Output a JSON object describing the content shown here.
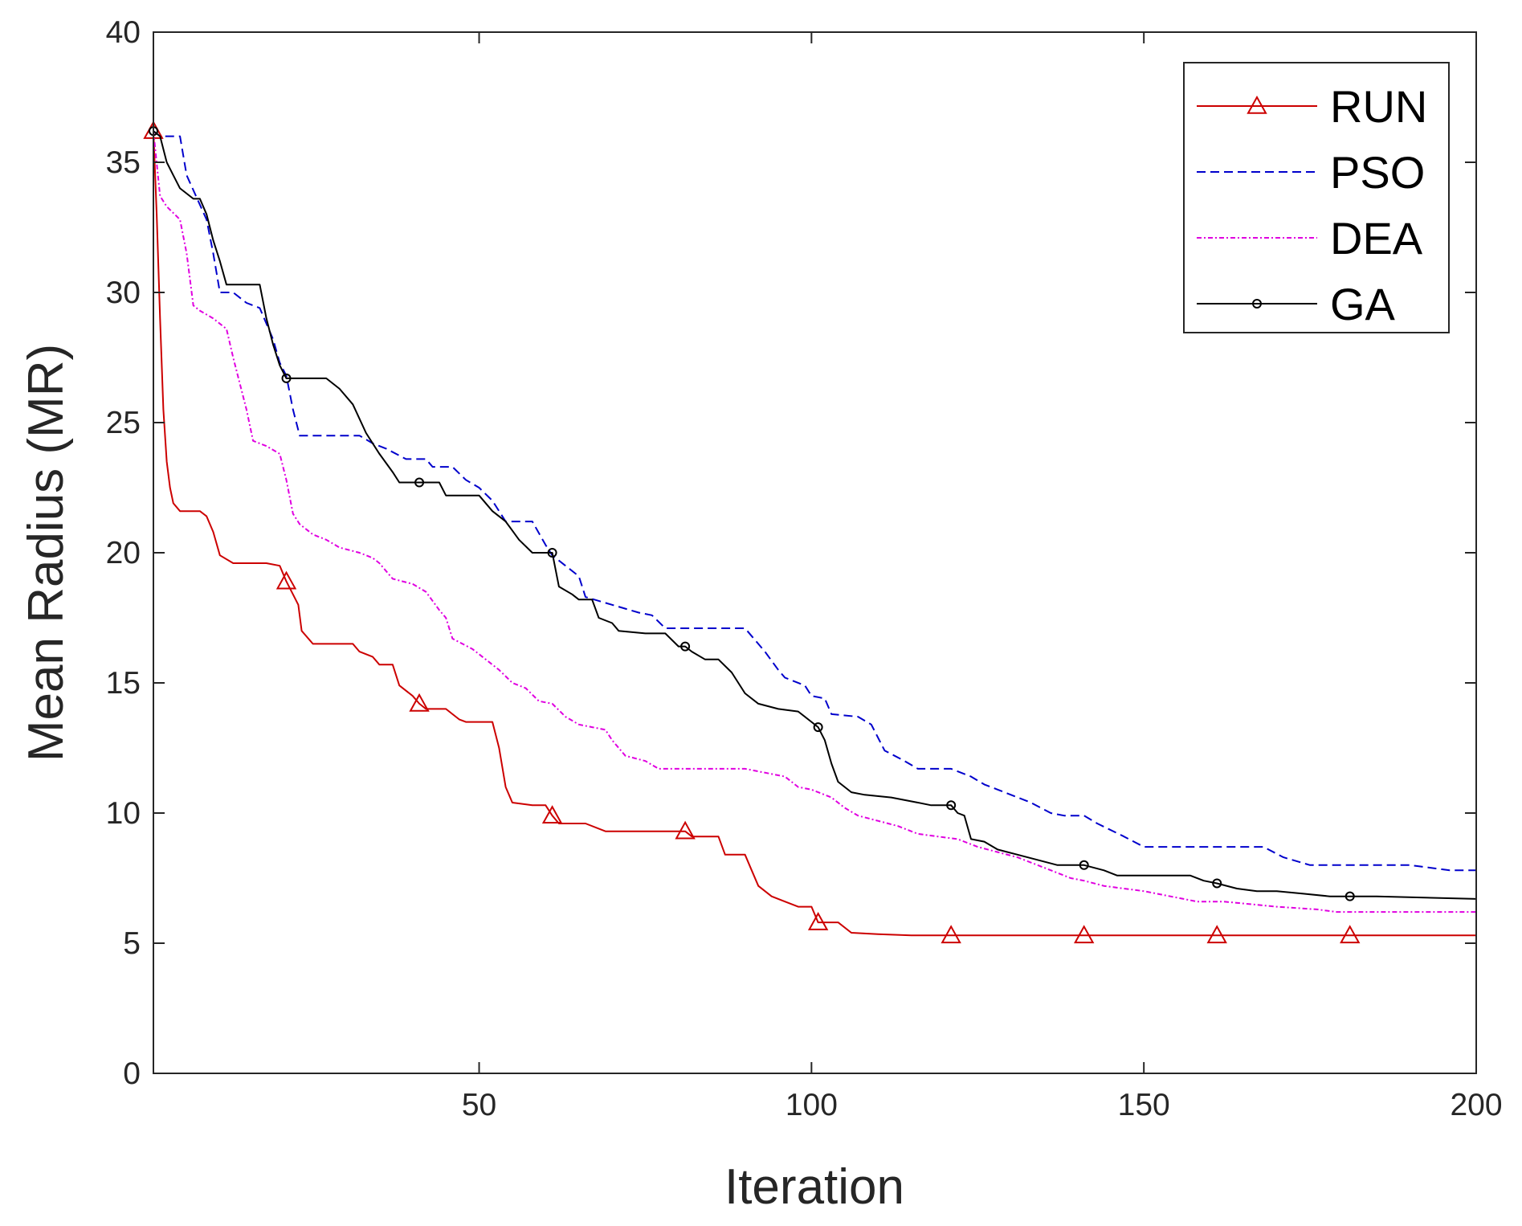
{
  "chart_data": {
    "type": "line",
    "title": "",
    "xlabel": "Iteration",
    "ylabel": "Mean Radius (MR)",
    "xlim": [
      1,
      200
    ],
    "ylim": [
      0,
      40
    ],
    "xticks": [
      50,
      100,
      150,
      200
    ],
    "yticks": [
      0,
      5,
      10,
      15,
      20,
      25,
      30,
      35,
      40
    ],
    "grid": false,
    "legend_position": "top-right",
    "series": [
      {
        "name": "RUN",
        "color": "#cc0000",
        "line_style": "solid",
        "marker": "triangle",
        "marker_x": [
          1,
          21,
          41,
          61,
          81,
          101,
          121,
          141,
          161,
          181
        ],
        "points": [
          [
            1,
            36.2
          ],
          [
            1.5,
            33
          ],
          [
            2,
            29
          ],
          [
            2.5,
            25.5
          ],
          [
            3,
            23.5
          ],
          [
            3.5,
            22.5
          ],
          [
            4,
            21.9
          ],
          [
            5,
            21.6
          ],
          [
            8,
            21.6
          ],
          [
            9,
            21.4
          ],
          [
            10,
            20.8
          ],
          [
            11,
            19.9
          ],
          [
            13,
            19.6
          ],
          [
            16,
            19.6
          ],
          [
            18,
            19.6
          ],
          [
            20,
            19.5
          ],
          [
            21,
            18.9
          ],
          [
            22,
            18.4
          ],
          [
            22.8,
            18.0
          ],
          [
            23.3,
            17.0
          ],
          [
            25,
            16.5
          ],
          [
            29,
            16.5
          ],
          [
            31,
            16.5
          ],
          [
            32,
            16.2
          ],
          [
            34,
            16.0
          ],
          [
            35,
            15.7
          ],
          [
            37,
            15.7
          ],
          [
            38,
            14.9
          ],
          [
            40,
            14.5
          ],
          [
            41,
            14.2
          ],
          [
            42,
            14.0
          ],
          [
            45,
            14.0
          ],
          [
            46,
            13.8
          ],
          [
            47,
            13.6
          ],
          [
            48,
            13.5
          ],
          [
            52,
            13.5
          ],
          [
            53,
            12.5
          ],
          [
            54,
            11.0
          ],
          [
            55,
            10.4
          ],
          [
            58,
            10.3
          ],
          [
            60,
            10.3
          ],
          [
            61,
            9.9
          ],
          [
            62,
            9.6
          ],
          [
            66,
            9.6
          ],
          [
            69,
            9.3
          ],
          [
            73,
            9.3
          ],
          [
            77,
            9.3
          ],
          [
            81,
            9.3
          ],
          [
            82,
            9.1
          ],
          [
            86,
            9.1
          ],
          [
            87,
            8.4
          ],
          [
            90,
            8.4
          ],
          [
            91,
            7.8
          ],
          [
            92,
            7.2
          ],
          [
            94,
            6.8
          ],
          [
            96,
            6.6
          ],
          [
            98,
            6.4
          ],
          [
            100,
            6.4
          ],
          [
            101,
            5.8
          ],
          [
            104,
            5.8
          ],
          [
            106,
            5.4
          ],
          [
            110,
            5.35
          ],
          [
            115,
            5.3
          ],
          [
            121,
            5.3
          ],
          [
            141,
            5.3
          ],
          [
            161,
            5.3
          ],
          [
            181,
            5.3
          ],
          [
            200,
            5.3
          ]
        ]
      },
      {
        "name": "PSO",
        "color": "#0000cc",
        "line_style": "dashed",
        "marker": "none",
        "points": [
          [
            1,
            36.2
          ],
          [
            2,
            36.0
          ],
          [
            5,
            36.0
          ],
          [
            6,
            34.5
          ],
          [
            9,
            32.8
          ],
          [
            10,
            31.5
          ],
          [
            11,
            30.0
          ],
          [
            13,
            30.0
          ],
          [
            15,
            29.6
          ],
          [
            17,
            29.4
          ],
          [
            19,
            28.2
          ],
          [
            20,
            27.3
          ],
          [
            21,
            26.8
          ],
          [
            22,
            25.5
          ],
          [
            23,
            24.5
          ],
          [
            27,
            24.5
          ],
          [
            32,
            24.5
          ],
          [
            34,
            24.2
          ],
          [
            36,
            24.0
          ],
          [
            39,
            23.6
          ],
          [
            42,
            23.6
          ],
          [
            43,
            23.3
          ],
          [
            46,
            23.3
          ],
          [
            48,
            22.8
          ],
          [
            50,
            22.5
          ],
          [
            52,
            22.0
          ],
          [
            54,
            21.2
          ],
          [
            58,
            21.2
          ],
          [
            60,
            20.3
          ],
          [
            61,
            19.9
          ],
          [
            63,
            19.5
          ],
          [
            65,
            19.1
          ],
          [
            66,
            18.3
          ],
          [
            70,
            18.0
          ],
          [
            74,
            17.7
          ],
          [
            76,
            17.6
          ],
          [
            78,
            17.1
          ],
          [
            80,
            17.1
          ],
          [
            90,
            17.1
          ],
          [
            93,
            16.2
          ],
          [
            95,
            15.5
          ],
          [
            96,
            15.2
          ],
          [
            99,
            14.9
          ],
          [
            100,
            14.5
          ],
          [
            102,
            14.4
          ],
          [
            103,
            13.8
          ],
          [
            107,
            13.7
          ],
          [
            109,
            13.4
          ],
          [
            111,
            12.4
          ],
          [
            114,
            12.0
          ],
          [
            116,
            11.7
          ],
          [
            121,
            11.7
          ],
          [
            124,
            11.4
          ],
          [
            126,
            11.1
          ],
          [
            128,
            10.9
          ],
          [
            130,
            10.7
          ],
          [
            133,
            10.4
          ],
          [
            136,
            10.0
          ],
          [
            138,
            9.9
          ],
          [
            141,
            9.9
          ],
          [
            143,
            9.6
          ],
          [
            147,
            9.1
          ],
          [
            150,
            8.7
          ],
          [
            153,
            8.7
          ],
          [
            160,
            8.7
          ],
          [
            168,
            8.7
          ],
          [
            171,
            8.3
          ],
          [
            175,
            8.0
          ],
          [
            180,
            8.0
          ],
          [
            190,
            8.0
          ],
          [
            193,
            7.9
          ],
          [
            196,
            7.8
          ],
          [
            200,
            7.8
          ]
        ]
      },
      {
        "name": "DEA",
        "color": "#e000e0",
        "line_style": "dash-dot",
        "marker": "none",
        "points": [
          [
            1,
            36.2
          ],
          [
            2,
            33.7
          ],
          [
            3,
            33.3
          ],
          [
            5,
            32.8
          ],
          [
            6,
            31.5
          ],
          [
            7,
            29.5
          ],
          [
            8,
            29.3
          ],
          [
            10,
            29.0
          ],
          [
            12,
            28.6
          ],
          [
            13,
            27.5
          ],
          [
            14,
            26.5
          ],
          [
            15,
            25.5
          ],
          [
            16,
            24.3
          ],
          [
            18,
            24.1
          ],
          [
            20,
            23.8
          ],
          [
            21,
            22.8
          ],
          [
            22,
            21.5
          ],
          [
            23,
            21.1
          ],
          [
            25,
            20.7
          ],
          [
            27,
            20.5
          ],
          [
            29,
            20.2
          ],
          [
            32,
            20.0
          ],
          [
            34,
            19.8
          ],
          [
            35,
            19.6
          ],
          [
            37,
            19.0
          ],
          [
            40,
            18.8
          ],
          [
            42,
            18.5
          ],
          [
            44,
            17.8
          ],
          [
            45,
            17.5
          ],
          [
            46,
            16.7
          ],
          [
            49,
            16.3
          ],
          [
            51,
            15.9
          ],
          [
            53,
            15.5
          ],
          [
            55,
            15.0
          ],
          [
            57,
            14.8
          ],
          [
            59,
            14.3
          ],
          [
            61,
            14.2
          ],
          [
            63,
            13.7
          ],
          [
            65,
            13.4
          ],
          [
            67,
            13.3
          ],
          [
            69,
            13.2
          ],
          [
            70,
            12.8
          ],
          [
            72,
            12.2
          ],
          [
            75,
            12.0
          ],
          [
            77,
            11.7
          ],
          [
            80,
            11.7
          ],
          [
            90,
            11.7
          ],
          [
            96,
            11.4
          ],
          [
            98,
            11.0
          ],
          [
            100,
            10.9
          ],
          [
            103,
            10.6
          ],
          [
            105,
            10.2
          ],
          [
            107,
            9.9
          ],
          [
            110,
            9.7
          ],
          [
            113,
            9.5
          ],
          [
            116,
            9.2
          ],
          [
            119,
            9.1
          ],
          [
            122,
            9.0
          ],
          [
            125,
            8.7
          ],
          [
            128,
            8.5
          ],
          [
            131,
            8.3
          ],
          [
            134,
            8.0
          ],
          [
            137,
            7.7
          ],
          [
            139,
            7.5
          ],
          [
            141,
            7.4
          ],
          [
            144,
            7.2
          ],
          [
            147,
            7.1
          ],
          [
            150,
            7.0
          ],
          [
            154,
            6.8
          ],
          [
            158,
            6.6
          ],
          [
            162,
            6.6
          ],
          [
            166,
            6.5
          ],
          [
            170,
            6.4
          ],
          [
            176,
            6.3
          ],
          [
            179,
            6.2
          ],
          [
            185,
            6.2
          ],
          [
            190,
            6.2
          ],
          [
            200,
            6.2
          ]
        ]
      },
      {
        "name": "GA",
        "color": "#000000",
        "line_style": "solid",
        "marker": "circle",
        "marker_x": [
          1,
          21,
          41,
          61,
          81,
          101,
          121,
          141,
          161,
          181
        ],
        "points": [
          [
            1,
            36.2
          ],
          [
            2,
            36.0
          ],
          [
            3,
            35.0
          ],
          [
            4,
            34.5
          ],
          [
            5,
            34.0
          ],
          [
            7,
            33.6
          ],
          [
            8,
            33.6
          ],
          [
            9,
            33.0
          ],
          [
            10,
            32.0
          ],
          [
            11,
            31.2
          ],
          [
            12,
            30.3
          ],
          [
            14,
            30.3
          ],
          [
            17,
            30.3
          ],
          [
            18,
            29.0
          ],
          [
            19,
            28.0
          ],
          [
            20,
            27.2
          ],
          [
            21,
            26.7
          ],
          [
            22,
            26.7
          ],
          [
            27,
            26.7
          ],
          [
            29,
            26.3
          ],
          [
            31,
            25.7
          ],
          [
            33,
            24.6
          ],
          [
            35,
            23.8
          ],
          [
            37,
            23.1
          ],
          [
            38,
            22.7
          ],
          [
            41,
            22.7
          ],
          [
            44,
            22.7
          ],
          [
            45,
            22.2
          ],
          [
            50,
            22.2
          ],
          [
            52,
            21.6
          ],
          [
            54,
            21.2
          ],
          [
            56,
            20.5
          ],
          [
            58,
            20.0
          ],
          [
            61,
            20.0
          ],
          [
            62,
            18.7
          ],
          [
            64,
            18.4
          ],
          [
            65,
            18.2
          ],
          [
            67,
            18.2
          ],
          [
            68,
            17.5
          ],
          [
            70,
            17.3
          ],
          [
            71,
            17.0
          ],
          [
            75,
            16.9
          ],
          [
            78,
            16.9
          ],
          [
            80,
            16.4
          ],
          [
            81,
            16.4
          ],
          [
            82,
            16.2
          ],
          [
            84,
            15.9
          ],
          [
            86,
            15.9
          ],
          [
            88,
            15.4
          ],
          [
            89,
            15.0
          ],
          [
            90,
            14.6
          ],
          [
            92,
            14.2
          ],
          [
            95,
            14.0
          ],
          [
            98,
            13.9
          ],
          [
            100,
            13.5
          ],
          [
            101,
            13.3
          ],
          [
            102,
            12.8
          ],
          [
            103,
            11.9
          ],
          [
            104,
            11.2
          ],
          [
            106,
            10.8
          ],
          [
            108,
            10.7
          ],
          [
            112,
            10.6
          ],
          [
            116,
            10.4
          ],
          [
            118,
            10.3
          ],
          [
            121,
            10.3
          ],
          [
            122,
            10.0
          ],
          [
            123,
            9.9
          ],
          [
            124,
            9.0
          ],
          [
            126,
            8.9
          ],
          [
            128,
            8.6
          ],
          [
            131,
            8.4
          ],
          [
            134,
            8.2
          ],
          [
            137,
            8.0
          ],
          [
            141,
            8.0
          ],
          [
            144,
            7.8
          ],
          [
            146,
            7.6
          ],
          [
            150,
            7.6
          ],
          [
            157,
            7.6
          ],
          [
            159,
            7.4
          ],
          [
            161,
            7.3
          ],
          [
            164,
            7.1
          ],
          [
            167,
            7.0
          ],
          [
            170,
            7.0
          ],
          [
            174,
            6.9
          ],
          [
            178,
            6.8
          ],
          [
            181,
            6.8
          ],
          [
            185,
            6.8
          ],
          [
            200,
            6.7
          ]
        ]
      }
    ]
  }
}
